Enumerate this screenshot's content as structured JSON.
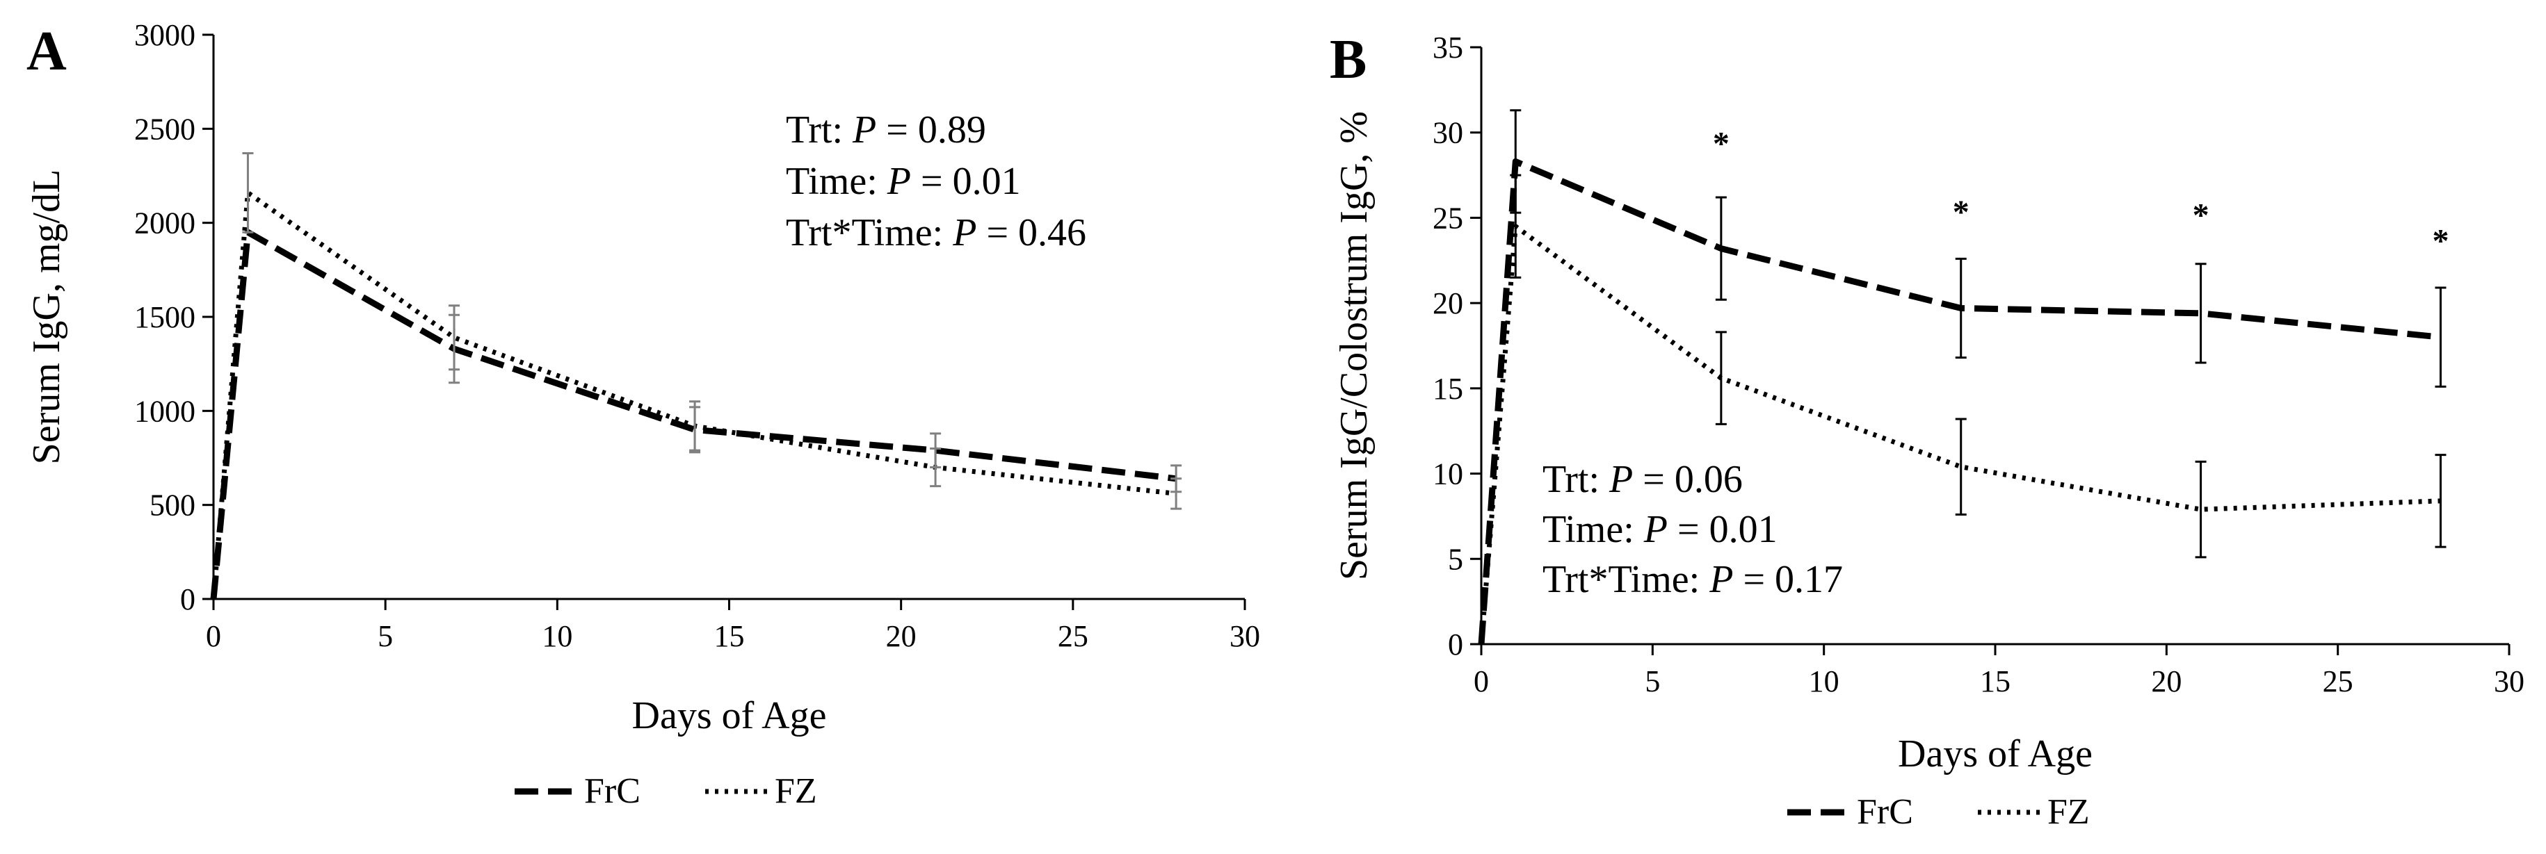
{
  "chart_data": [
    {
      "type": "line",
      "panel_label": "A",
      "xlabel": "Days of Age",
      "ylabel": "Serum IgG, mg/dL",
      "xlim": [
        0,
        30
      ],
      "ylim": [
        0,
        3000
      ],
      "xticks": [
        0,
        5,
        10,
        15,
        20,
        25,
        30
      ],
      "yticks": [
        0,
        500,
        1000,
        1500,
        2000,
        2500,
        3000
      ],
      "grid": false,
      "legend_position": "bottom-center",
      "stats": [
        {
          "label": "Trt: ",
          "p": "P",
          "value": " = 0.89"
        },
        {
          "label": "Time: ",
          "p": "P",
          "value": " = 0.01"
        },
        {
          "label": "Trt*Time: ",
          "p": "P",
          "value": " = 0.46"
        }
      ],
      "series": [
        {
          "name": "FrC",
          "style": "dashed",
          "x": [
            0,
            1,
            7,
            14,
            21,
            28
          ],
          "y": [
            0,
            1950,
            1330,
            900,
            790,
            640
          ],
          "err": [
            null,
            null,
            180,
            120,
            90,
            70
          ]
        },
        {
          "name": "FZ",
          "style": "dotted",
          "x": [
            0,
            1,
            7,
            14,
            21,
            28
          ],
          "y": [
            0,
            2160,
            1390,
            920,
            700,
            560
          ],
          "err": [
            null,
            210,
            170,
            130,
            100,
            80
          ]
        }
      ],
      "annotations": []
    },
    {
      "type": "line",
      "panel_label": "B",
      "xlabel": "Days of Age",
      "ylabel": "Serum IgG/Colostrum IgG, %",
      "xlim": [
        0,
        30
      ],
      "ylim": [
        0,
        35
      ],
      "xticks": [
        0,
        5,
        10,
        15,
        20,
        25,
        30
      ],
      "yticks": [
        0,
        5,
        10,
        15,
        20,
        25,
        30,
        35
      ],
      "grid": false,
      "legend_position": "bottom-center",
      "stats": [
        {
          "label": "Trt: ",
          "p": "P",
          "value": " = 0.06"
        },
        {
          "label": "Time: ",
          "p": "P",
          "value": " = 0.01"
        },
        {
          "label": "Trt*Time: ",
          "p": "P",
          "value": " = 0.17"
        }
      ],
      "series": [
        {
          "name": "FrC",
          "style": "dashed",
          "x": [
            0,
            1,
            7,
            14,
            21,
            28
          ],
          "y": [
            0,
            28.3,
            23.2,
            19.7,
            19.4,
            18.0
          ],
          "err": [
            null,
            3.0,
            3.0,
            2.9,
            2.9,
            2.9
          ]
        },
        {
          "name": "FZ",
          "style": "dotted",
          "x": [
            0,
            1,
            7,
            14,
            21,
            28
          ],
          "y": [
            0,
            24.5,
            15.6,
            10.4,
            7.9,
            8.4
          ],
          "err": [
            null,
            3.0,
            2.7,
            2.8,
            2.8,
            2.7
          ]
        }
      ],
      "annotations": [
        {
          "x": 7,
          "y": 28.7,
          "text": "*"
        },
        {
          "x": 14,
          "y": 24.7,
          "text": "*"
        },
        {
          "x": 21,
          "y": 24.5,
          "text": "*"
        },
        {
          "x": 28,
          "y": 23.0,
          "text": "*"
        }
      ]
    }
  ]
}
